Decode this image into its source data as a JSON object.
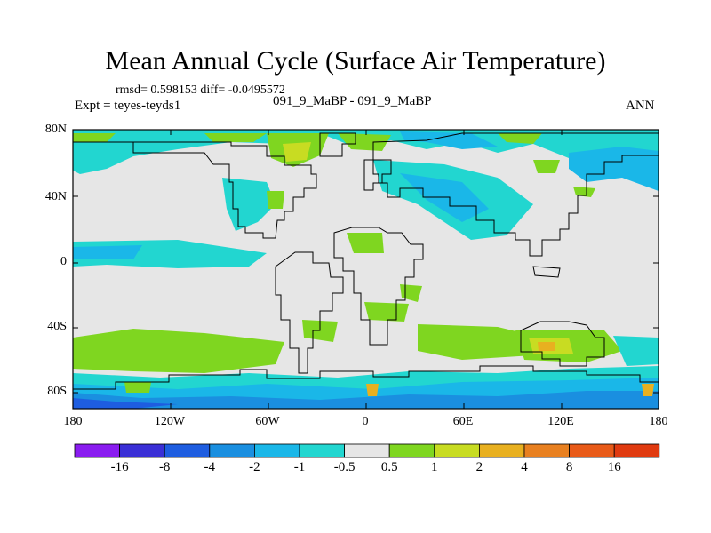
{
  "title": "Mean Annual Cycle (Surface Air Temperature)",
  "stats_line": "rmsd= 0.598153 diff= -0.0495572",
  "experiment": "Expt = teyes-teyds1",
  "center_label": "091_9_MaBP - 091_9_MaBP",
  "season": "ANN",
  "lat_labels": [
    "80N",
    "40N",
    "0",
    "40S",
    "80S"
  ],
  "lon_labels": [
    "180",
    "120W",
    "60W",
    "0",
    "60E",
    "120E",
    "180"
  ],
  "colorbar": {
    "labels": [
      "-16",
      "-8",
      "-4",
      "-2",
      "-1",
      "-0.5",
      "0.5",
      "1",
      "2",
      "4",
      "8",
      "16"
    ],
    "colors": [
      "#8a1cf0",
      "#3a2fd6",
      "#1e5de0",
      "#1a8fe0",
      "#1ab7e8",
      "#22d6d0",
      "#e6e6e6",
      "#7fd620",
      "#c8dc22",
      "#e8b020",
      "#e88020",
      "#e85a18",
      "#e03a10"
    ]
  },
  "map_colors": {
    "background": "#e6e6e6",
    "cool_light": "#22d6d0",
    "cool": "#1ab7e8",
    "cool_strong": "#1a8fe0",
    "cool_deep": "#1e5de0",
    "warm_light": "#7fd620",
    "warm": "#c8dc22",
    "warm_strong": "#e8b020",
    "coast": "#000000"
  }
}
